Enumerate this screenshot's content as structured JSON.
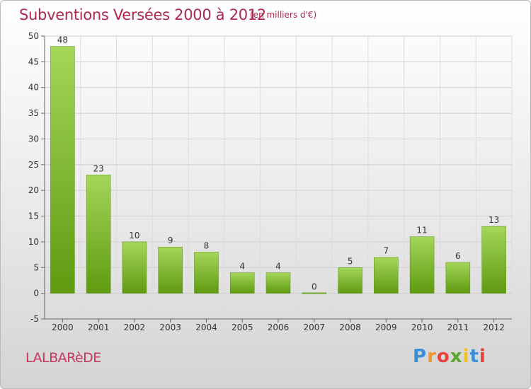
{
  "header": {
    "title": "Subventions Versées 2000 à 2012",
    "subtitle": "(en milliers d'€)"
  },
  "footer": {
    "commune": "LALBARèDE",
    "logo_text": "Proxiti",
    "logo_colors": [
      "#3a8fd6",
      "#f0962e",
      "#e8423f",
      "#5aa832",
      "#f0c419",
      "#3a8fd6",
      "#e8423f"
    ]
  },
  "colors": {
    "bar_top": "#a4d65a",
    "bar_bottom": "#5f9a10",
    "title": "#b0284e"
  },
  "chart_data": {
    "type": "bar",
    "categories": [
      "2000",
      "2001",
      "2002",
      "2003",
      "2004",
      "2005",
      "2006",
      "2007",
      "2008",
      "2009",
      "2010",
      "2011",
      "2012"
    ],
    "values": [
      48,
      23,
      10,
      9,
      8,
      4,
      4,
      0,
      5,
      7,
      11,
      6,
      13
    ],
    "data_labels": [
      "48",
      "23",
      "10",
      "9",
      "8",
      "4",
      "4",
      "0",
      "5",
      "7",
      "11",
      "6",
      "13"
    ],
    "yticks": [
      -5,
      0,
      5,
      10,
      15,
      20,
      25,
      30,
      35,
      40,
      45,
      50
    ],
    "ylim": [
      -5,
      50
    ],
    "grid": true,
    "xlabel": "",
    "ylabel": ""
  }
}
